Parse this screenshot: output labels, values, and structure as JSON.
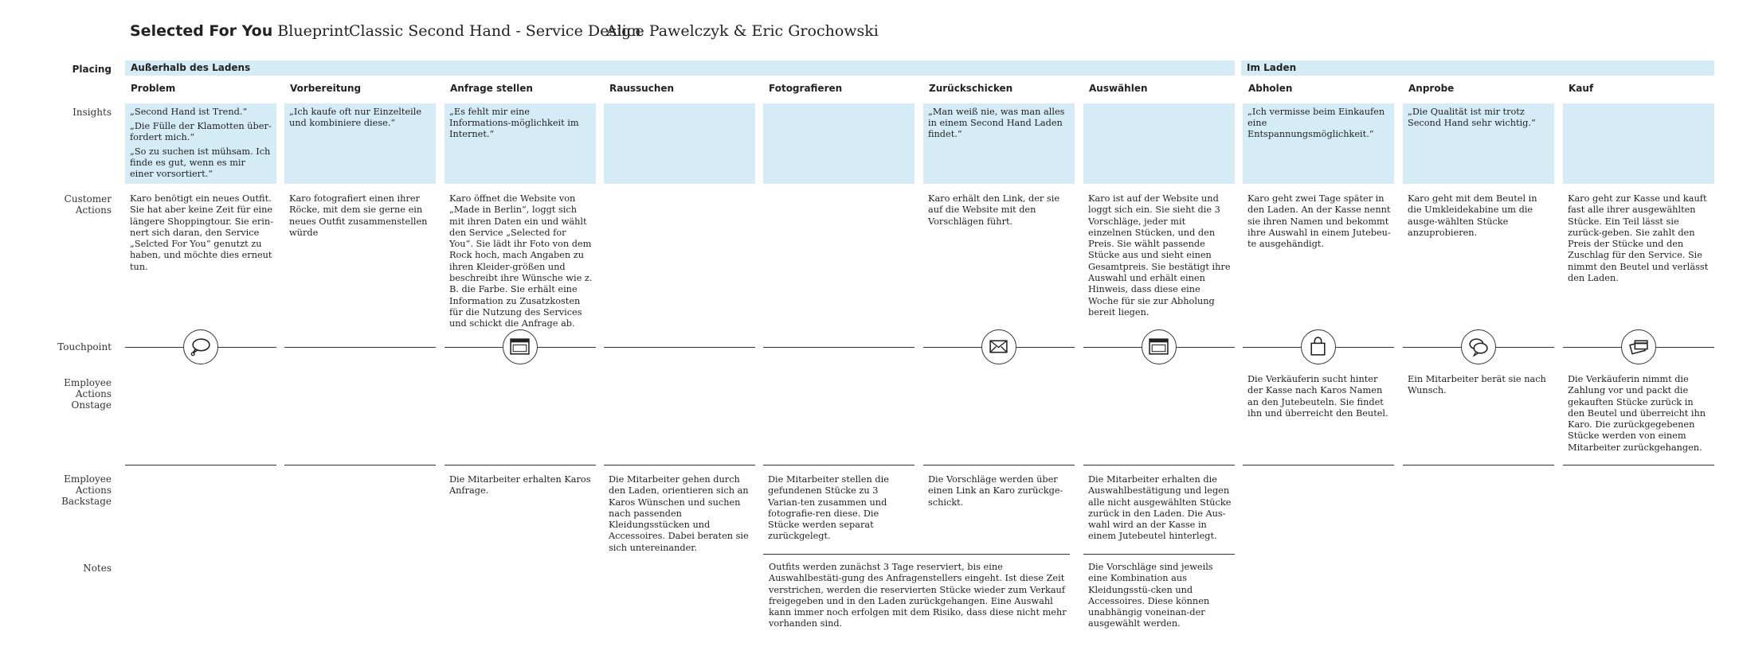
{
  "header": {
    "title_bold": "Selected For You",
    "title_rest": " Blueprint",
    "project": "Classic Second Hand - Service Design",
    "authors": "Alice Pawelczyk & Eric Grochowski"
  },
  "row_labels": {
    "placing": "Placing",
    "insights": "Insights",
    "customer_actions": [
      "Customer",
      "Actions"
    ],
    "touchpoint": "Touchpoint",
    "onstage": [
      "Employee",
      "Actions",
      "Onstage"
    ],
    "backstage": [
      "Employee",
      "Actions",
      "Backstage"
    ],
    "notes": "Notes"
  },
  "phases": [
    {
      "label": "Außerhalb des Ladens"
    },
    {
      "label": "Im Laden"
    }
  ],
  "columns": [
    {
      "title": "Problem",
      "insights": [
        "„Second Hand ist Trend.“",
        "„Die Fülle der Klamotten über-fordert mich.“",
        "„So zu suchen ist mühsam. Ich finde es gut, wenn es mir einer vorsortiert.“"
      ],
      "customer": "Karo benötigt ein neues Outfit. Sie hat aber keine Zeit für eine längere Shoppingtour. Sie erin-nert sich daran, den Service „Selcted For You“ genutzt zu haben, und möchte dies erneut tun.",
      "touchpoint_icon": "speech-bubble-icon",
      "onstage": "",
      "backstage": ""
    },
    {
      "title": "Vorbereitung",
      "insights": [
        "„Ich kaufe oft nur Einzelteile und kombiniere diese.“"
      ],
      "customer": "Karo fotografiert einen ihrer Röcke, mit dem sie gerne ein neues Outfit zusammenstellen würde",
      "touchpoint_icon": "",
      "onstage": "",
      "backstage": ""
    },
    {
      "title": "Anfrage stellen",
      "insights": [
        "„Es fehlt mir eine Informations-möglichkeit im Internet.“"
      ],
      "customer": "Karo öffnet die Website von „Made in Berlin“, loggt sich mit ihren Daten ein und wählt den Service „Selected for You“. Sie lädt ihr Foto von dem Rock hoch, mach Angaben zu ihren Kleider-größen und beschreibt ihre Wünsche wie z. B. die Farbe. Sie erhält eine Information zu Zusatzkosten für die Nutzung des Services und schickt die Anfrage ab.",
      "touchpoint_icon": "browser-window-icon",
      "onstage": "",
      "backstage": "Die Mitarbeiter erhalten Karos Anfrage."
    },
    {
      "title": "Raussuchen",
      "insights": [],
      "customer": "",
      "touchpoint_icon": "",
      "onstage": "",
      "backstage": "Die Mitarbeiter gehen durch den Laden, orientieren sich an Karos Wünschen und suchen nach passenden Kleidungsstücken und Accessoires. Dabei beraten sie sich untereinander."
    },
    {
      "title": "Fotografieren",
      "insights": [],
      "customer": "",
      "touchpoint_icon": "",
      "onstage": "",
      "backstage": "Die Mitarbeiter stellen die gefundenen Stücke zu 3 Varian-ten zusammen und fotografie-ren diese. Die Stücke werden separat zurückgelegt."
    },
    {
      "title": "Zurückschicken",
      "insights": [
        "„Man weiß nie, was man alles in einem Second Hand Laden findet.“"
      ],
      "customer": "Karo erhält den Link, der sie auf die Website mit den Vorschlägen führt.",
      "touchpoint_icon": "envelope-icon",
      "onstage": "",
      "backstage": "Die Vorschläge werden über einen Link an Karo zurückge-schickt."
    },
    {
      "title": "Auswählen",
      "insights": [],
      "customer": "Karo ist auf der Website und loggt sich ein. Sie sieht die 3 Vorschläge, jeder mit einzelnen Stücken, und den Preis. Sie wählt passende Stücke aus und sieht einen Gesamtpreis. Sie bestätigt ihre Auswahl und erhält einen Hinweis, dass diese eine Woche für sie zur Abholung bereit liegen.",
      "touchpoint_icon": "browser-window-icon",
      "onstage": "",
      "backstage": "Die Mitarbeiter erhalten die Auswahlbestätigung und legen alle nicht ausgewählten Stücke zurück in den Laden. Die Aus-wahl wird an der Kasse in einem Jutebeutel hinterlegt."
    },
    {
      "title": "Abholen",
      "insights": [
        "„Ich vermisse beim Einkaufen eine Entspannungsmöglichkeit.“"
      ],
      "customer": "Karo geht zwei Tage später in den Laden. An der Kasse nennt sie ihren Namen und bekommt ihre Auswahl in einem Jutebeu-te ausgehändigt.",
      "touchpoint_icon": "shopping-bag-icon",
      "onstage": "Die Verkäuferin sucht hinter der Kasse nach Karos Namen an den Jutebeuteln. Sie findet ihn und überreicht den Beutel.",
      "backstage": ""
    },
    {
      "title": "Anprobe",
      "insights": [
        "„Die Qualität ist mir trotz Second Hand sehr wichtig.“"
      ],
      "customer": "Karo geht mit dem Beutel in die Umkleidekabine um die ausge-wählten Stücke anzuprobieren.",
      "touchpoint_icon": "chat-bubbles-icon",
      "onstage": "Ein Mitarbeiter berät sie nach Wunsch.",
      "backstage": ""
    },
    {
      "title": "Kauf",
      "insights": [],
      "customer": "Karo geht zur Kasse und kauft fast alle ihrer ausgewählten Stücke. Ein Teil lässt sie zurück-geben. Sie zahlt den Preis der Stücke und den Zuschlag für den Service. Sie nimmt den Beutel und verlässt den Laden.",
      "touchpoint_icon": "payment-card-icon",
      "onstage": "Die Verkäuferin nimmt die Zahlung vor und packt die gekauften Stücke zurück in den Beutel und überreicht ihn Karo. Die zurückgegebenen Stücke werden von einem Mitarbeiter zurückgehangen.",
      "backstage": ""
    }
  ],
  "notes": [
    {
      "text": "Outfits werden zunächst 3 Tage reserviert, bis eine Auswahlbestäti-gung des Anfragenstellers eingeht. Ist diese Zeit verstrichen, werden die reservierten Stücke wieder zum Verkauf freigegeben und in den Laden zurückgehangen. Eine Auswahl kann immer noch erfolgen mit dem Risiko, dass diese nicht mehr vorhanden sind."
    },
    {
      "text": "Die Vorschläge sind jeweils eine Kombination aus Kleidungsstü-cken und Accessoires. Diese können unabhängig voneinan-der ausgewählt werden."
    }
  ],
  "colors": {
    "insight_bg": "#d5ecf7",
    "line": "#333333"
  }
}
